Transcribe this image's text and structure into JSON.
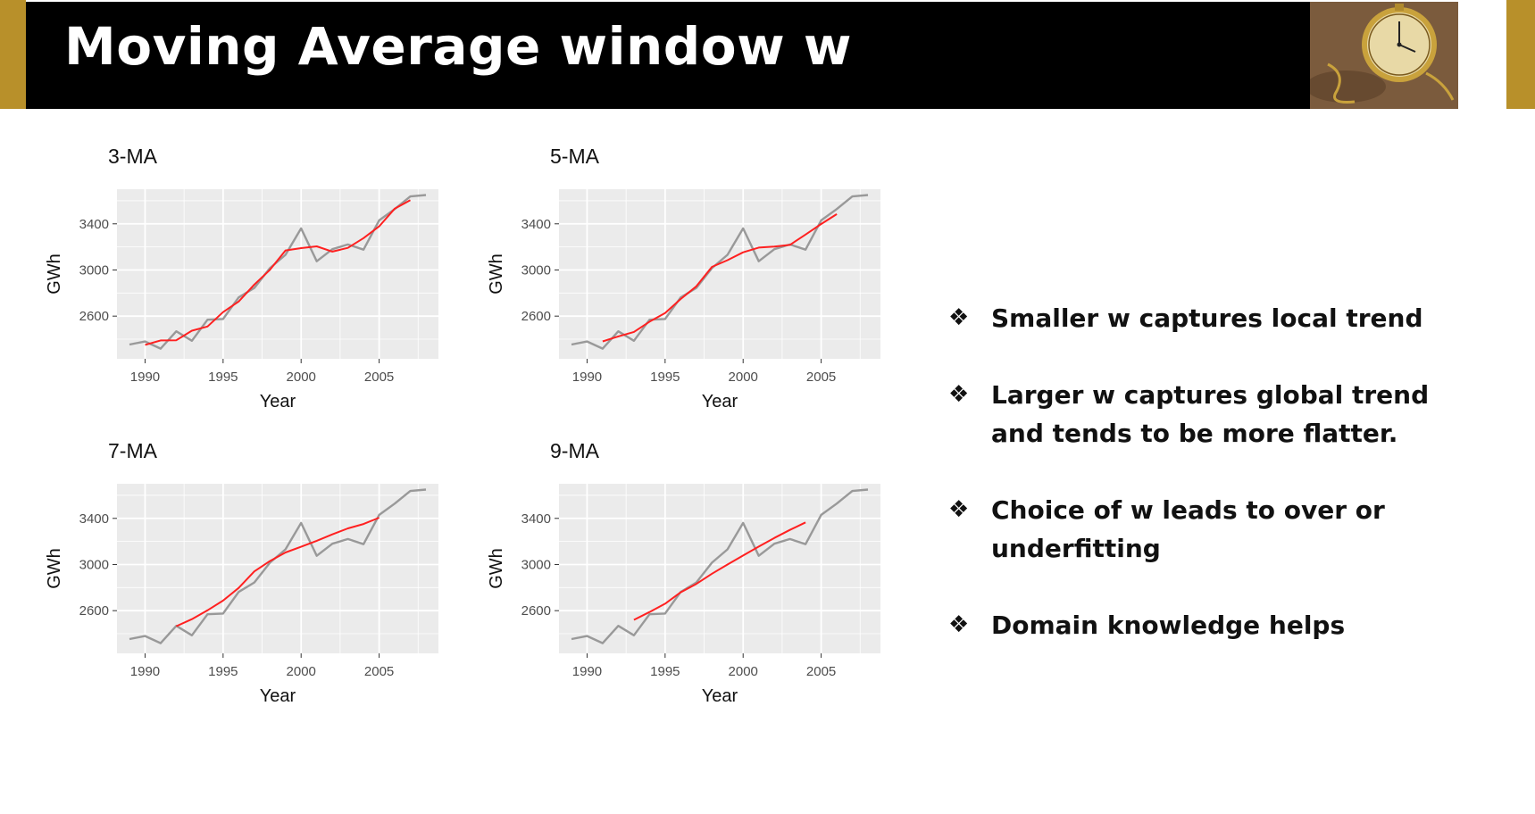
{
  "slide": {
    "title": "Moving Average window w"
  },
  "bullets": [
    {
      "icon": "four-diamond-bullet-icon",
      "symbol": "❖",
      "text": "Smaller w captures local trend"
    },
    {
      "icon": "four-diamond-bullet-icon",
      "symbol": "❖",
      "text": " Larger w captures global trend and tends to be more flatter."
    },
    {
      "icon": "four-diamond-bullet-icon",
      "symbol": "❖",
      "text": " Choice of w leads to over or underfitting"
    },
    {
      "icon": "four-diamond-bullet-icon",
      "symbol": "❖",
      "text": "Domain knowledge helps"
    }
  ],
  "colors": {
    "title_bar": "#000000",
    "accent_gold": "#b8902a",
    "panel_bg": "#ebebeb",
    "grid": "#ffffff",
    "raw_series": "#999999",
    "ma_series": "#ff2020"
  },
  "chart_data": [
    {
      "type": "line",
      "title": "3-MA",
      "xlabel": "Year",
      "ylabel": "GWh",
      "xlim": [
        1988.2,
        2008.8
      ],
      "ylim": [
        2230,
        3700
      ],
      "xticks": [
        1990,
        1995,
        2000,
        2005
      ],
      "yticks": [
        2600,
        3000,
        3400
      ],
      "grid": true,
      "legend": "none",
      "series": [
        {
          "x": [
            1989,
            1990,
            1991,
            1992,
            1993,
            1994,
            1995,
            1996,
            1997,
            1998,
            1999,
            2000,
            2001,
            2002,
            2003,
            2004,
            2005,
            2006,
            2007,
            2008
          ],
          "values": [
            2354,
            2380,
            2318,
            2468,
            2386,
            2569,
            2575,
            2762,
            2844,
            3016,
            3131,
            3360,
            3076,
            3180,
            3221,
            3176,
            3430,
            3528,
            3637,
            3650
          ]
        },
        {
          "x": [
            1990,
            1991,
            1992,
            1993,
            1994,
            1995,
            1996,
            1997,
            1998,
            1999,
            2000,
            2001,
            2002,
            2003,
            2004,
            2005,
            2006,
            2007
          ],
          "values": [
            2351,
            2389,
            2391,
            2474,
            2510,
            2635,
            2727,
            2874,
            3001,
            3169,
            3189,
            3205,
            3159,
            3192,
            3276,
            3378,
            3532,
            3605
          ]
        }
      ]
    },
    {
      "type": "line",
      "title": "5-MA",
      "xlabel": "Year",
      "ylabel": "GWh",
      "xlim": [
        1988.2,
        2008.8
      ],
      "ylim": [
        2230,
        3700
      ],
      "xticks": [
        1990,
        1995,
        2000,
        2005
      ],
      "yticks": [
        2600,
        3000,
        3400
      ],
      "grid": true,
      "legend": "none",
      "series": [
        {
          "x": [
            1989,
            1990,
            1991,
            1992,
            1993,
            1994,
            1995,
            1996,
            1997,
            1998,
            1999,
            2000,
            2001,
            2002,
            2003,
            2004,
            2005,
            2006,
            2007,
            2008
          ],
          "values": [
            2354,
            2380,
            2318,
            2468,
            2386,
            2569,
            2575,
            2762,
            2844,
            3016,
            3131,
            3360,
            3076,
            3180,
            3221,
            3176,
            3430,
            3528,
            3637,
            3650
          ]
        },
        {
          "x": [
            1991,
            1992,
            1993,
            1994,
            1995,
            1996,
            1997,
            1998,
            1999,
            2000,
            2001,
            2002,
            2003,
            2004,
            2005,
            2006
          ],
          "values": [
            2381,
            2424,
            2463,
            2552,
            2627,
            2748,
            2858,
            3027,
            3085,
            3153,
            3194,
            3203,
            3217,
            3307,
            3398,
            3484
          ]
        }
      ]
    },
    {
      "type": "line",
      "title": "7-MA",
      "xlabel": "Year",
      "ylabel": "GWh",
      "xlim": [
        1988.2,
        2008.8
      ],
      "ylim": [
        2230,
        3700
      ],
      "xticks": [
        1990,
        1995,
        2000,
        2005
      ],
      "yticks": [
        2600,
        3000,
        3400
      ],
      "grid": true,
      "legend": "none",
      "series": [
        {
          "x": [
            1989,
            1990,
            1991,
            1992,
            1993,
            1994,
            1995,
            1996,
            1997,
            1998,
            1999,
            2000,
            2001,
            2002,
            2003,
            2004,
            2005,
            2006,
            2007,
            2008
          ],
          "values": [
            2354,
            2380,
            2318,
            2468,
            2386,
            2569,
            2575,
            2762,
            2844,
            3016,
            3131,
            3360,
            3076,
            3180,
            3221,
            3176,
            3430,
            3528,
            3637,
            3650
          ]
        },
        {
          "x": [
            1992,
            1993,
            1994,
            1995,
            1996,
            1997,
            1998,
            1999,
            2000,
            2001,
            2002,
            2003,
            2004,
            2005
          ],
          "values": [
            2465,
            2526,
            2603,
            2687,
            2797,
            2940,
            3030,
            3104,
            3154,
            3206,
            3261,
            3313,
            3351,
            3406
          ]
        }
      ]
    },
    {
      "type": "line",
      "title": "9-MA",
      "xlabel": "Year",
      "ylabel": "GWh",
      "xlim": [
        1988.2,
        2008.8
      ],
      "ylim": [
        2230,
        3700
      ],
      "xticks": [
        1990,
        1995,
        2000,
        2005
      ],
      "yticks": [
        2600,
        3000,
        3400
      ],
      "grid": true,
      "legend": "none",
      "series": [
        {
          "x": [
            1989,
            1990,
            1991,
            1992,
            1993,
            1994,
            1995,
            1996,
            1997,
            1998,
            1999,
            2000,
            2001,
            2002,
            2003,
            2004,
            2005,
            2006,
            2007,
            2008
          ],
          "values": [
            2354,
            2380,
            2318,
            2468,
            2386,
            2569,
            2575,
            2762,
            2844,
            3016,
            3131,
            3360,
            3076,
            3180,
            3221,
            3176,
            3430,
            3528,
            3637,
            3650
          ]
        },
        {
          "x": [
            1993,
            1994,
            1995,
            1996,
            1997,
            1998,
            1999,
            2000,
            2001,
            2002,
            2003,
            2004
          ],
          "values": [
            2520,
            2588,
            2660,
            2759,
            2832,
            2920,
            3000,
            3078,
            3155,
            3230,
            3300,
            3365
          ]
        }
      ]
    }
  ]
}
